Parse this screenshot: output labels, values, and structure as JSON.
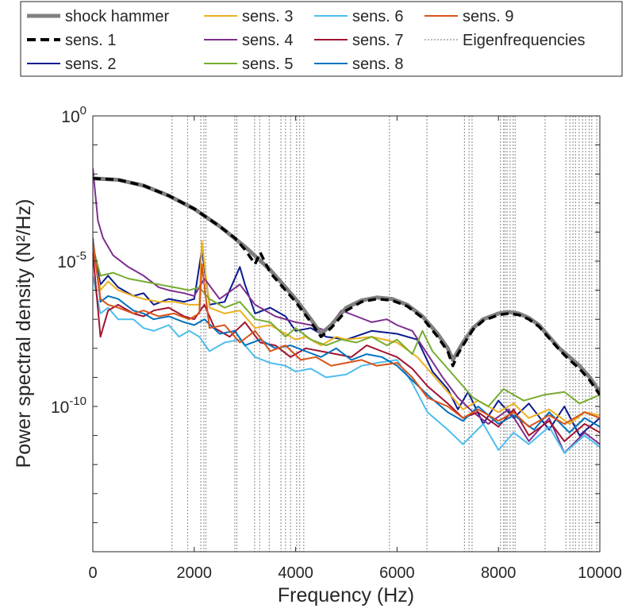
{
  "chart_data": {
    "type": "line",
    "title": "",
    "xlabel": "Frequency (Hz)",
    "ylabel": "Power spectral density (N²/Hz)",
    "xlim": [
      0,
      10000
    ],
    "ylim_log10": [
      -15,
      0
    ],
    "y_scale": "log",
    "grid": false,
    "legend_position": "top, outside plot area",
    "x_ticks": [
      0,
      2000,
      4000,
      6000,
      8000,
      10000
    ],
    "x_tick_labels": [
      "0",
      "2000",
      "4000",
      "6000",
      "8000",
      "10000"
    ],
    "y_ticks_log10": [
      -10,
      -5,
      0
    ],
    "y_tick_base": "10",
    "y_tick_exponents": [
      "-10",
      "-5",
      "0"
    ],
    "legend": [
      {
        "label": "shock hammer",
        "color": "#808080",
        "style": "solid-thick"
      },
      {
        "label": "sens. 1",
        "color": "#000000",
        "style": "dashed-thick"
      },
      {
        "label": "sens. 2",
        "color": "#0b1b8f",
        "style": "solid"
      },
      {
        "label": "sens. 3",
        "color": "#edb120",
        "style": "solid"
      },
      {
        "label": "sens. 4",
        "color": "#7e2f8e",
        "style": "solid"
      },
      {
        "label": "sens. 5",
        "color": "#77ac30",
        "style": "solid"
      },
      {
        "label": "sens. 6",
        "color": "#4dbeee",
        "style": "solid"
      },
      {
        "label": "sens. 7",
        "color": "#a2142f",
        "style": "solid"
      },
      {
        "label": "sens. 8",
        "color": "#0072bd",
        "style": "solid"
      },
      {
        "label": "sens. 9",
        "color": "#d95319",
        "style": "solid"
      },
      {
        "label": "Eigenfrequencies",
        "color": "#a0a0a0",
        "style": "dotted"
      }
    ],
    "eigenfrequencies": [
      1560,
      1870,
      2130,
      2190,
      2230,
      2800,
      2840,
      3190,
      3290,
      3480,
      3710,
      3800,
      3900,
      4020,
      4080,
      4160,
      5850,
      6590,
      7330,
      7420,
      7480,
      8040,
      8100,
      8130,
      8170,
      8230,
      8290,
      8330,
      8920,
      9330,
      9410,
      9470,
      9520,
      9590,
      9660,
      9720,
      9790,
      9840,
      9940
    ],
    "series": [
      {
        "name": "shock hammer",
        "color": "#808080",
        "width": 5,
        "x": [
          0,
          500,
          1000,
          1500,
          2000,
          2500,
          3000,
          3500,
          4000,
          4300,
          4500,
          4700,
          5000,
          5300,
          5600,
          5900,
          6200,
          6500,
          6800,
          7000,
          7100,
          7200,
          7300,
          7500,
          7700,
          8000,
          8200,
          8400,
          8600,
          8800,
          9000,
          9200,
          9400,
          9600,
          9800,
          10000
        ],
        "y": [
          -2.15,
          -2.2,
          -2.4,
          -2.75,
          -3.2,
          -3.8,
          -4.5,
          -5.3,
          -6.3,
          -7.0,
          -7.5,
          -7.2,
          -6.6,
          -6.35,
          -6.25,
          -6.3,
          -6.5,
          -6.9,
          -7.5,
          -8.0,
          -8.4,
          -8.1,
          -7.8,
          -7.3,
          -7.0,
          -6.8,
          -6.75,
          -6.8,
          -6.95,
          -7.2,
          -7.6,
          -8.0,
          -8.3,
          -8.6,
          -9.0,
          -9.5
        ]
      },
      {
        "name": "sens. 1",
        "color": "#000000",
        "width": 3.5,
        "dash": "10,6",
        "x": [
          0,
          500,
          1000,
          1500,
          2000,
          2500,
          2800,
          3000,
          3200,
          3300,
          3500,
          4000,
          4300,
          4500,
          4700,
          5000,
          5300,
          5600,
          5900,
          6200,
          6500,
          6800,
          7000,
          7100,
          7200,
          7300,
          7500,
          7700,
          8000,
          8200,
          8400,
          8600,
          8800,
          9000,
          9200,
          9400,
          9600,
          9800,
          10000
        ],
        "y": [
          -2.15,
          -2.2,
          -2.4,
          -2.75,
          -3.2,
          -3.8,
          -4.2,
          -4.6,
          -5.1,
          -4.7,
          -5.4,
          -6.4,
          -7.1,
          -7.6,
          -7.3,
          -6.7,
          -6.4,
          -6.3,
          -6.35,
          -6.55,
          -6.95,
          -7.6,
          -8.1,
          -8.6,
          -8.2,
          -7.9,
          -7.35,
          -7.05,
          -6.85,
          -6.8,
          -6.85,
          -7.0,
          -7.25,
          -7.65,
          -8.05,
          -8.4,
          -8.7,
          -9.1,
          -9.6
        ]
      },
      {
        "name": "sens. 2",
        "color": "#0b1b8f",
        "width": 2,
        "x": [
          0,
          150,
          300,
          500,
          800,
          1000,
          1200,
          1500,
          1800,
          2000,
          2150,
          2300,
          2600,
          2900,
          3000,
          3200,
          3500,
          3800,
          4000,
          4300,
          4600,
          5000,
          5500,
          6000,
          6400,
          6700,
          7000,
          7200,
          7400,
          7700,
          8000,
          8300,
          8600,
          9000,
          9300,
          9600,
          10000
        ],
        "y": [
          -4.5,
          -5.8,
          -5.5,
          -5.9,
          -6.2,
          -6.1,
          -6.5,
          -6.3,
          -6.4,
          -6.3,
          -4.6,
          -6.5,
          -6.4,
          -5.2,
          -5.8,
          -6.8,
          -6.6,
          -6.9,
          -7.4,
          -7.3,
          -7.6,
          -7.7,
          -7.4,
          -7.5,
          -7.7,
          -8.8,
          -9.4,
          -10.1,
          -9.5,
          -10.6,
          -9.8,
          -10.4,
          -9.9,
          -10.8,
          -10.0,
          -11.0,
          -10.4
        ]
      },
      {
        "name": "sens. 3",
        "color": "#edb120",
        "width": 2,
        "x": [
          0,
          150,
          300,
          500,
          800,
          1000,
          1300,
          1600,
          1900,
          2100,
          2150,
          2300,
          2600,
          2900,
          3200,
          3500,
          3800,
          4000,
          4200,
          4500,
          4800,
          5000,
          5500,
          6000,
          6400,
          6700,
          7000,
          7300,
          7600,
          8000,
          8300,
          8600,
          9000,
          9400,
          9700,
          10000
        ],
        "y": [
          -4.6,
          -6.0,
          -5.7,
          -6.0,
          -6.2,
          -6.3,
          -6.4,
          -6.4,
          -6.5,
          -6.5,
          -4.3,
          -6.6,
          -6.8,
          -6.7,
          -7.3,
          -7.2,
          -7.5,
          -7.7,
          -7.6,
          -7.9,
          -7.6,
          -7.7,
          -7.6,
          -7.8,
          -8.3,
          -8.9,
          -9.5,
          -10.1,
          -9.8,
          -10.2,
          -9.9,
          -10.4,
          -10.1,
          -10.6,
          -10.2,
          -10.3
        ]
      },
      {
        "name": "sens. 4",
        "color": "#7e2f8e",
        "width": 2,
        "x": [
          0,
          100,
          200,
          400,
          700,
          1000,
          1300,
          1500,
          1800,
          2000,
          2200,
          2500,
          2900,
          3200,
          3600,
          4000,
          4300,
          4600,
          4900,
          5200,
          5500,
          5800,
          6000,
          6300,
          6600,
          6900,
          7200,
          7500,
          7800,
          8200,
          8600,
          9000,
          9300,
          9700,
          10000
        ],
        "y": [
          -1.8,
          -3.6,
          -4.2,
          -4.8,
          -5.2,
          -5.5,
          -5.9,
          -6.0,
          -6.1,
          -6.2,
          -5.6,
          -6.3,
          -5.8,
          -6.5,
          -6.9,
          -7.1,
          -7.2,
          -7.4,
          -6.7,
          -6.9,
          -7.1,
          -7.0,
          -7.2,
          -7.4,
          -8.2,
          -9.0,
          -9.7,
          -10.2,
          -10.6,
          -10.1,
          -11.2,
          -10.4,
          -11.6,
          -10.9,
          -11.3
        ]
      },
      {
        "name": "sens. 5",
        "color": "#77ac30",
        "width": 2,
        "x": [
          0,
          150,
          400,
          700,
          1000,
          1300,
          1600,
          1900,
          2100,
          2300,
          2600,
          2900,
          3200,
          3500,
          3800,
          4000,
          4300,
          4600,
          4900,
          5200,
          5500,
          5800,
          6000,
          6300,
          6500,
          6700,
          7000,
          7200,
          7500,
          7800,
          8100,
          8500,
          8900,
          9300,
          9600,
          10000
        ],
        "y": [
          -4.5,
          -5.5,
          -5.4,
          -5.6,
          -5.7,
          -5.8,
          -5.9,
          -6.0,
          -5.9,
          -6.3,
          -6.6,
          -6.4,
          -7.0,
          -7.1,
          -7.6,
          -7.3,
          -7.7,
          -7.9,
          -7.7,
          -7.8,
          -7.6,
          -7.9,
          -7.7,
          -8.2,
          -7.4,
          -8.1,
          -8.7,
          -9.1,
          -9.7,
          -10.0,
          -9.4,
          -9.8,
          -9.6,
          -9.5,
          -9.9,
          -9.6
        ]
      },
      {
        "name": "sens. 6",
        "color": "#4dbeee",
        "width": 2,
        "x": [
          0,
          150,
          300,
          500,
          800,
          1000,
          1200,
          1500,
          1700,
          1900,
          2100,
          2300,
          2600,
          2900,
          3200,
          3500,
          3800,
          4000,
          4300,
          4600,
          5000,
          5300,
          5600,
          6000,
          6300,
          6600,
          7000,
          7300,
          7700,
          8000,
          8300,
          8600,
          9000,
          9300,
          9700,
          10000
        ],
        "y": [
          -5.5,
          -6.8,
          -6.6,
          -7.0,
          -7.0,
          -7.3,
          -7.4,
          -7.2,
          -7.6,
          -7.4,
          -7.6,
          -8.1,
          -7.8,
          -7.7,
          -8.3,
          -8.5,
          -8.6,
          -8.8,
          -8.7,
          -9.0,
          -8.9,
          -8.6,
          -8.5,
          -8.4,
          -9.2,
          -10.2,
          -10.8,
          -11.3,
          -10.6,
          -11.5,
          -10.9,
          -11.3,
          -10.7,
          -11.6,
          -11.0,
          -11.4
        ]
      },
      {
        "name": "sens. 7",
        "color": "#a2142f",
        "width": 2,
        "x": [
          0,
          150,
          300,
          500,
          800,
          1000,
          1200,
          1500,
          1800,
          2000,
          2200,
          2400,
          2700,
          3000,
          3300,
          3600,
          3900,
          4200,
          4500,
          4800,
          5100,
          5400,
          5700,
          6000,
          6300,
          6600,
          7000,
          7300,
          7600,
          8000,
          8300,
          8600,
          9000,
          9300,
          9700,
          10000
        ],
        "y": [
          -4.7,
          -7.6,
          -6.7,
          -6.5,
          -6.8,
          -6.9,
          -6.7,
          -6.6,
          -6.9,
          -7.0,
          -6.5,
          -7.3,
          -7.6,
          -7.1,
          -7.8,
          -7.9,
          -8.3,
          -8.0,
          -8.1,
          -8.2,
          -8.3,
          -7.9,
          -8.1,
          -8.3,
          -8.7,
          -9.3,
          -9.9,
          -10.4,
          -10.2,
          -10.7,
          -10.1,
          -11.0,
          -10.5,
          -11.2,
          -10.6,
          -10.9
        ]
      },
      {
        "name": "sens. 8",
        "color": "#0072bd",
        "width": 2,
        "x": [
          0,
          150,
          300,
          500,
          800,
          1000,
          1200,
          1500,
          1800,
          2000,
          2200,
          2500,
          2800,
          3000,
          3300,
          3600,
          3900,
          4200,
          4500,
          4800,
          5100,
          5400,
          5700,
          6000,
          6300,
          6600,
          7000,
          7300,
          7600,
          8000,
          8300,
          8700,
          9000,
          9400,
          9700,
          10000
        ],
        "y": [
          -4.2,
          -6.4,
          -6.2,
          -6.3,
          -6.7,
          -6.8,
          -7.0,
          -6.9,
          -7.1,
          -7.2,
          -7.0,
          -7.5,
          -7.4,
          -7.9,
          -7.7,
          -8.0,
          -7.9,
          -8.1,
          -8.3,
          -8.0,
          -8.4,
          -8.2,
          -8.3,
          -8.6,
          -9.1,
          -9.6,
          -10.2,
          -10.5,
          -10.0,
          -10.6,
          -10.3,
          -10.8,
          -10.2,
          -10.9,
          -10.4,
          -10.7
        ]
      },
      {
        "name": "sens. 9",
        "color": "#d95319",
        "width": 2,
        "x": [
          0,
          150,
          300,
          500,
          800,
          1000,
          1300,
          1600,
          1900,
          2100,
          2150,
          2300,
          2600,
          2900,
          3200,
          3500,
          3800,
          4100,
          4400,
          4700,
          5000,
          5300,
          5600,
          6000,
          6300,
          6600,
          7000,
          7300,
          7600,
          8000,
          8300,
          8600,
          9000,
          9300,
          9700,
          10000
        ],
        "y": [
          -4.3,
          -6.3,
          -6.5,
          -6.6,
          -6.8,
          -6.7,
          -6.9,
          -6.8,
          -7.0,
          -6.8,
          -5.1,
          -7.3,
          -7.2,
          -7.8,
          -7.4,
          -8.1,
          -7.9,
          -8.4,
          -8.3,
          -8.6,
          -8.5,
          -8.4,
          -8.6,
          -8.5,
          -9.0,
          -9.7,
          -10.0,
          -10.4,
          -10.1,
          -10.5,
          -10.2,
          -10.7,
          -10.3,
          -10.6,
          -10.2,
          -10.4
        ]
      }
    ]
  }
}
